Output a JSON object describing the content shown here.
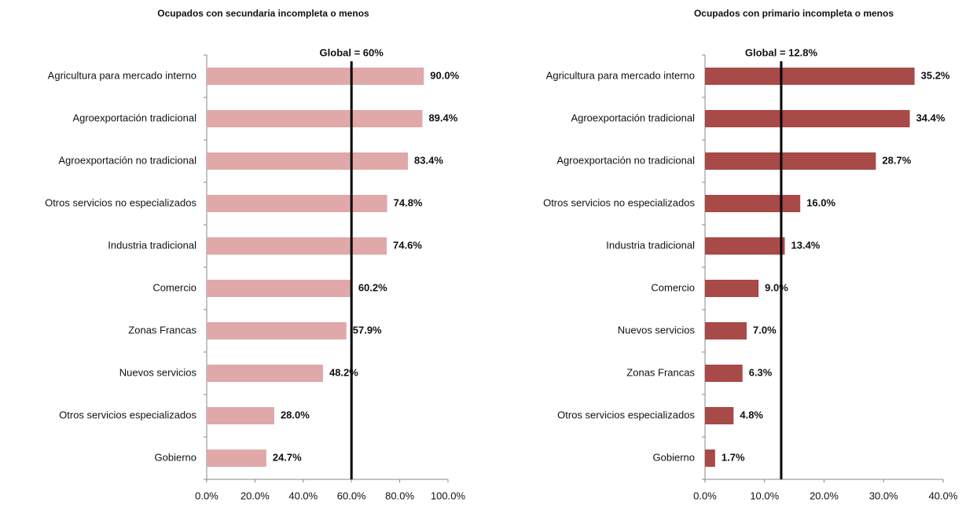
{
  "chart_data": [
    {
      "type": "bar",
      "orientation": "horizontal",
      "title": "Ocupados con secundaria incompleta o menos",
      "categories": [
        "Agricultura para mercado interno",
        "Agroexportación tradicional",
        "Agroexportación no tradicional",
        "Otros servicios no especializados",
        "Industria tradicional",
        "Comercio",
        "Zonas Francas",
        "Nuevos servicios",
        "Otros servicios especializados",
        "Gobierno"
      ],
      "values": [
        90.0,
        89.4,
        83.4,
        74.8,
        74.6,
        60.2,
        57.9,
        48.2,
        28.0,
        24.7
      ],
      "value_labels": [
        "90.0%",
        "89.4%",
        "83.4%",
        "74.8%",
        "74.6%",
        "60.2%",
        "57.9%",
        "48.2%",
        "28.0%",
        "24.7%"
      ],
      "color": "#e0a8a8",
      "xlim": [
        0,
        100
      ],
      "xticks": [
        {
          "value": 0,
          "label": "0.0%"
        },
        {
          "value": 20,
          "label": "20.0%"
        },
        {
          "value": 40,
          "label": "40.0%"
        },
        {
          "value": 60,
          "label": "60.0%"
        },
        {
          "value": 80,
          "label": "80.0%"
        },
        {
          "value": 100,
          "label": "100.0%"
        }
      ],
      "reference": {
        "value": 60,
        "label": "Global = 60%"
      }
    },
    {
      "type": "bar",
      "orientation": "horizontal",
      "title": "Ocupados con primario incompleta o menos",
      "categories": [
        "Agricultura para mercado interno",
        "Agroexportación tradicional",
        "Agroexportación no tradicional",
        "Otros servicios no especializados",
        "Industria tradicional",
        "Comercio",
        "Nuevos servicios",
        "Zonas Francas",
        "Otros servicios especializados",
        "Gobierno"
      ],
      "values": [
        35.2,
        34.4,
        28.7,
        16.0,
        13.4,
        9.0,
        7.0,
        6.3,
        4.8,
        1.7
      ],
      "value_labels": [
        "35.2%",
        "34.4%",
        "28.7%",
        "16.0%",
        "13.4%",
        "9.0%",
        "7.0%",
        "6.3%",
        "4.8%",
        "1.7%"
      ],
      "color": "#a84a48",
      "xlim": [
        0,
        40
      ],
      "xticks": [
        {
          "value": 0,
          "label": "0.0%"
        },
        {
          "value": 10,
          "label": "10.0%"
        },
        {
          "value": 20,
          "label": "20.0%"
        },
        {
          "value": 30,
          "label": "30.0%"
        },
        {
          "value": 40,
          "label": "40.0%"
        }
      ],
      "reference": {
        "value": 12.8,
        "label": "Global = 12.8%"
      }
    }
  ]
}
